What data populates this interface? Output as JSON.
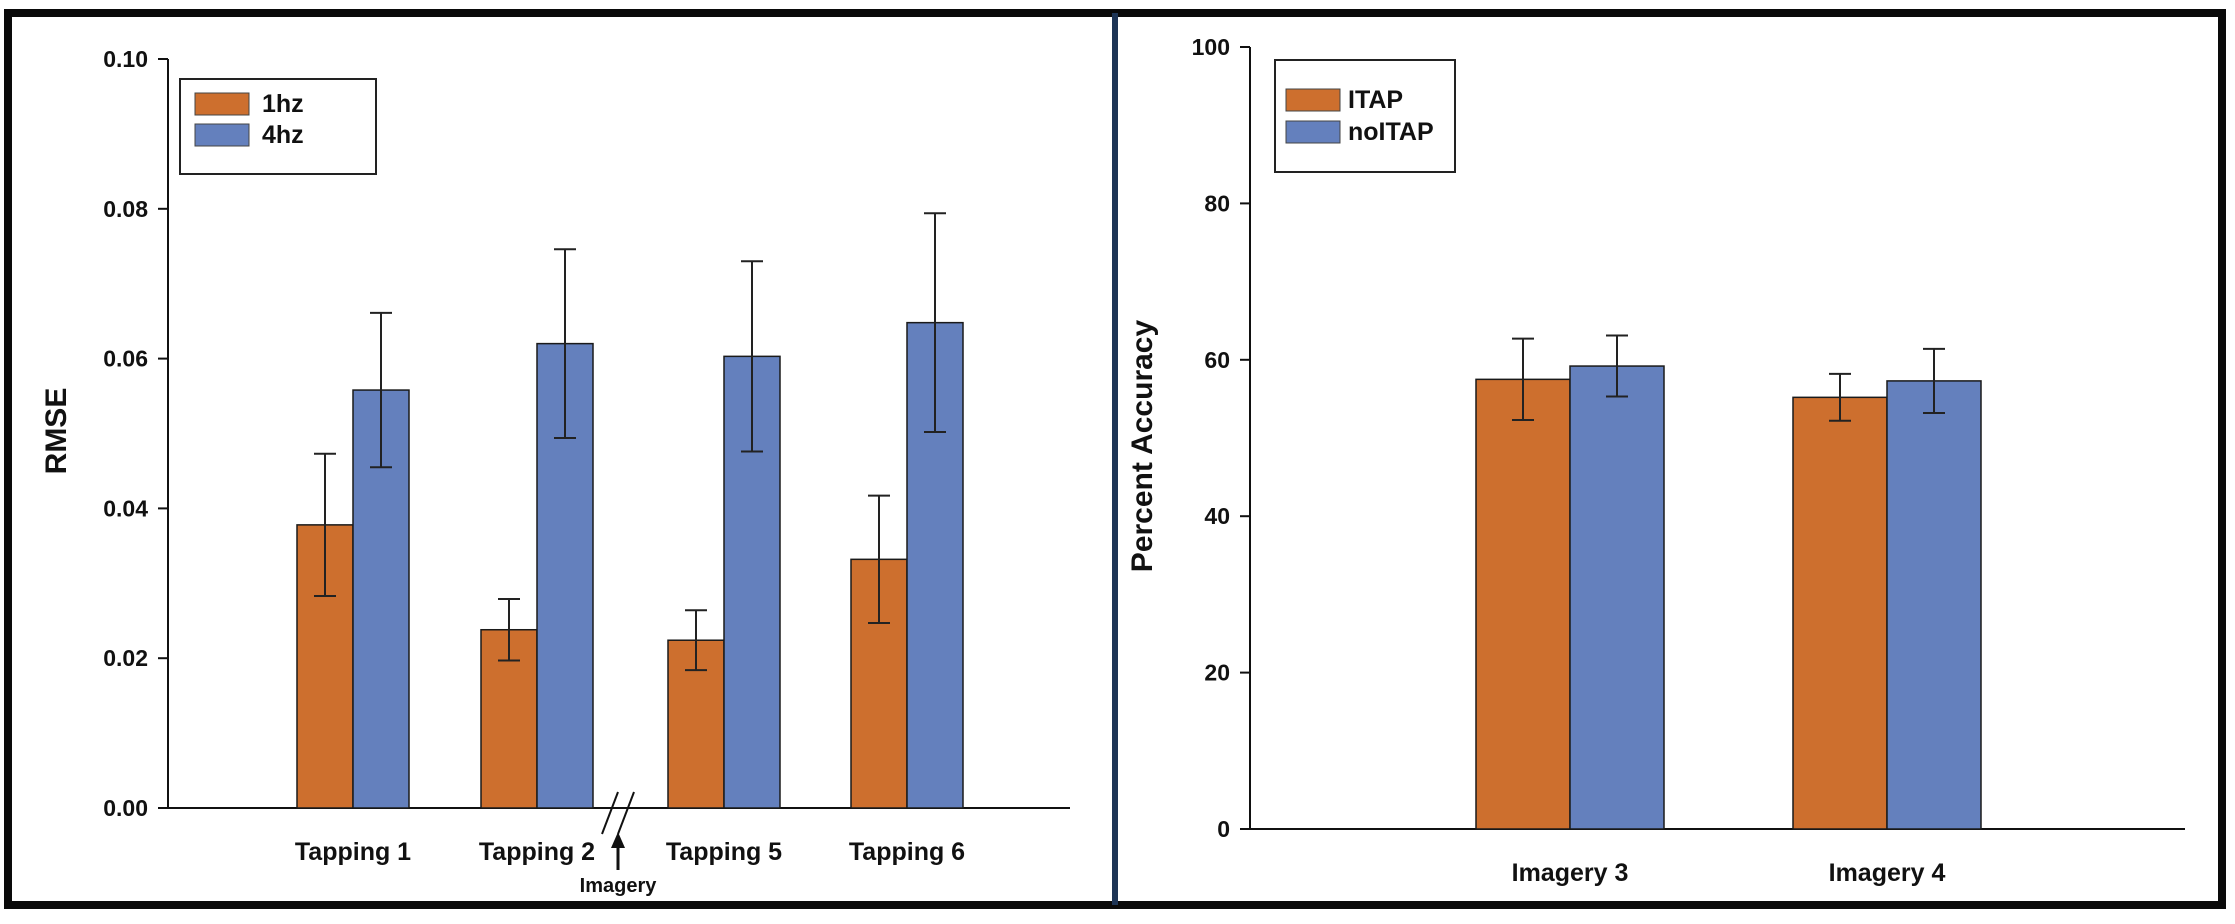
{
  "colors": {
    "series1": "#cd6f2e",
    "series2": "#6480bd",
    "frame": "#0a0a0a",
    "divider": "#1e3556"
  },
  "chart_data": [
    {
      "type": "bar",
      "title": "",
      "xlabel": "",
      "ylabel": "RMSE",
      "ylim": [
        0,
        0.1
      ],
      "yticks": [
        "0.00",
        "0.02",
        "0.04",
        "0.06",
        "0.08",
        "0.10"
      ],
      "categories": [
        "Tapping 1",
        "Tapping 2",
        "Tapping 5",
        "Tapping 6"
      ],
      "series": [
        {
          "name": "1hz",
          "values": [
            0.0378,
            0.0238,
            0.0224,
            0.0332
          ],
          "errors": [
            0.0095,
            0.0041,
            0.004,
            0.0085
          ]
        },
        {
          "name": "4hz",
          "values": [
            0.0558,
            0.062,
            0.0603,
            0.0648
          ],
          "errors": [
            0.0103,
            0.0126,
            0.0127,
            0.0146
          ]
        }
      ],
      "legend": "top-left",
      "annotation": "Imagery"
    },
    {
      "type": "bar",
      "title": "",
      "xlabel": "",
      "ylabel": "Percent Accuracy",
      "ylim": [
        0,
        100
      ],
      "yticks": [
        "0",
        "20",
        "40",
        "60",
        "80",
        "100"
      ],
      "categories": [
        "Imagery 3",
        "Imagery 4"
      ],
      "series": [
        {
          "name": "ITAP",
          "values": [
            57.5,
            55.2
          ],
          "errors": [
            5.2,
            3.0
          ]
        },
        {
          "name": "noITAP",
          "values": [
            59.2,
            57.3
          ],
          "errors": [
            3.9,
            4.1
          ]
        }
      ],
      "legend": "top-left"
    }
  ]
}
